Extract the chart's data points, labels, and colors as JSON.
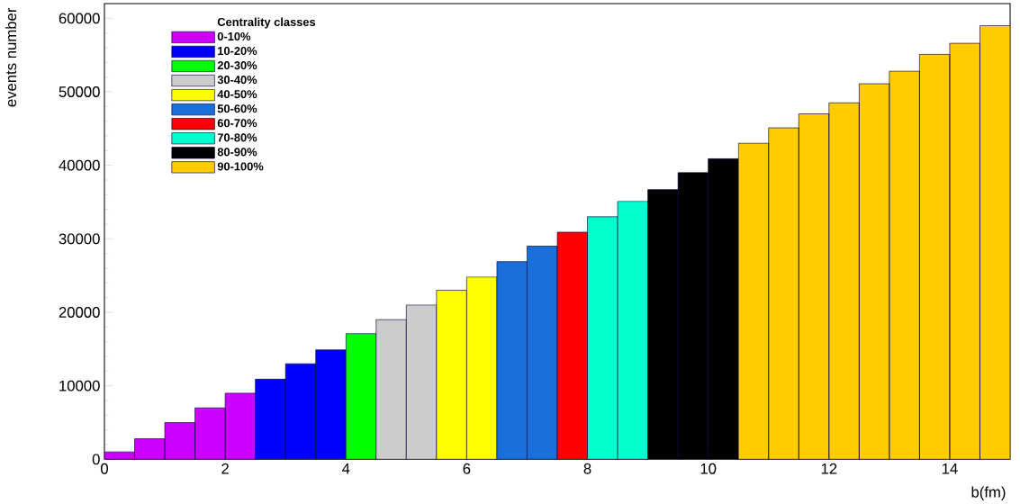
{
  "chart_data": {
    "type": "histogram",
    "xlabel": "b(fm)",
    "ylabel": "events number",
    "legend_title": "Centrality classes",
    "legend": "top left",
    "xlim": [
      0,
      15
    ],
    "ylim": [
      0,
      62000
    ],
    "xticks": [
      {
        "value": 0,
        "label": "0"
      },
      {
        "value": 2,
        "label": "2"
      },
      {
        "value": 4,
        "label": "4"
      },
      {
        "value": 6,
        "label": "6"
      },
      {
        "value": 8,
        "label": "8"
      },
      {
        "value": 10,
        "label": "10"
      },
      {
        "value": 12,
        "label": "12"
      },
      {
        "value": 14,
        "label": "14"
      }
    ],
    "yticks": [
      {
        "value": 0,
        "label": "0"
      },
      {
        "value": 10000,
        "label": "10000"
      },
      {
        "value": 20000,
        "label": "20000"
      },
      {
        "value": 30000,
        "label": "30000"
      },
      {
        "value": 40000,
        "label": "40000"
      },
      {
        "value": 50000,
        "label": "50000"
      },
      {
        "value": 60000,
        "label": "60000"
      }
    ],
    "bins": [
      0,
      0.5,
      1,
      1.5,
      2,
      2.5,
      3,
      3.5,
      4,
      4.5,
      5,
      5.5,
      6,
      6.5,
      7,
      7.5,
      8,
      8.5,
      9,
      9.5,
      10,
      10.5,
      11,
      11.5,
      12,
      12.5,
      13,
      13.5,
      14,
      14.5,
      15
    ],
    "series": [
      {
        "name": "0-10%",
        "color": "#cc00ff",
        "values": [
          1000,
          2800,
          5000,
          7000,
          9000,
          null,
          null,
          null,
          null,
          null,
          null,
          null,
          null,
          null,
          null,
          null,
          null,
          null,
          null,
          null,
          null,
          null,
          null,
          null,
          null,
          null,
          null,
          null,
          null,
          null
        ]
      },
      {
        "name": "10-20%",
        "color": "#0000ff",
        "values": [
          null,
          null,
          null,
          null,
          null,
          10900,
          13000,
          14900,
          null,
          null,
          null,
          null,
          null,
          null,
          null,
          null,
          null,
          null,
          null,
          null,
          null,
          null,
          null,
          null,
          null,
          null,
          null,
          null,
          null,
          null
        ]
      },
      {
        "name": "20-30%",
        "color": "#00ff00",
        "values": [
          null,
          null,
          null,
          null,
          null,
          null,
          null,
          null,
          17100,
          null,
          null,
          null,
          null,
          null,
          null,
          null,
          null,
          null,
          null,
          null,
          null,
          null,
          null,
          null,
          null,
          null,
          null,
          null,
          null,
          null
        ]
      },
      {
        "name": "30-40%",
        "color": "#cccccc",
        "values": [
          null,
          null,
          null,
          null,
          null,
          null,
          null,
          null,
          null,
          19000,
          21000,
          null,
          null,
          null,
          null,
          null,
          null,
          null,
          null,
          null,
          null,
          null,
          null,
          null,
          null,
          null,
          null,
          null,
          null,
          null
        ]
      },
      {
        "name": "40-50%",
        "color": "#ffff00",
        "values": [
          null,
          null,
          null,
          null,
          null,
          null,
          null,
          null,
          null,
          null,
          null,
          23000,
          24800,
          null,
          null,
          null,
          null,
          null,
          null,
          null,
          null,
          null,
          null,
          null,
          null,
          null,
          null,
          null,
          null,
          null
        ]
      },
      {
        "name": "50-60%",
        "color": "#1a6fdb",
        "values": [
          null,
          null,
          null,
          null,
          null,
          null,
          null,
          null,
          null,
          null,
          null,
          null,
          null,
          26900,
          29000,
          null,
          null,
          null,
          null,
          null,
          null,
          null,
          null,
          null,
          null,
          null,
          null,
          null,
          null,
          null
        ]
      },
      {
        "name": "60-70%",
        "color": "#ff0000",
        "values": [
          null,
          null,
          null,
          null,
          null,
          null,
          null,
          null,
          null,
          null,
          null,
          null,
          null,
          null,
          null,
          30900,
          null,
          null,
          null,
          null,
          null,
          null,
          null,
          null,
          null,
          null,
          null,
          null,
          null,
          null
        ]
      },
      {
        "name": "70-80%",
        "color": "#00ffcc",
        "values": [
          null,
          null,
          null,
          null,
          null,
          null,
          null,
          null,
          null,
          null,
          null,
          null,
          null,
          null,
          null,
          null,
          33000,
          35100,
          null,
          null,
          null,
          null,
          null,
          null,
          null,
          null,
          null,
          null,
          null,
          null
        ]
      },
      {
        "name": "80-90%",
        "color": "#000000",
        "values": [
          null,
          null,
          null,
          null,
          null,
          null,
          null,
          null,
          null,
          null,
          null,
          null,
          null,
          null,
          null,
          null,
          null,
          null,
          36700,
          39000,
          40900,
          null,
          null,
          null,
          null,
          null,
          null,
          null,
          null,
          null
        ]
      },
      {
        "name": "90-100%",
        "color": "#ffcc00",
        "values": [
          null,
          null,
          null,
          null,
          null,
          null,
          null,
          null,
          null,
          null,
          null,
          null,
          null,
          null,
          null,
          null,
          null,
          null,
          null,
          null,
          null,
          43000,
          45100,
          47000,
          48500,
          51100,
          52800,
          55100,
          56600,
          59000
        ]
      }
    ]
  }
}
